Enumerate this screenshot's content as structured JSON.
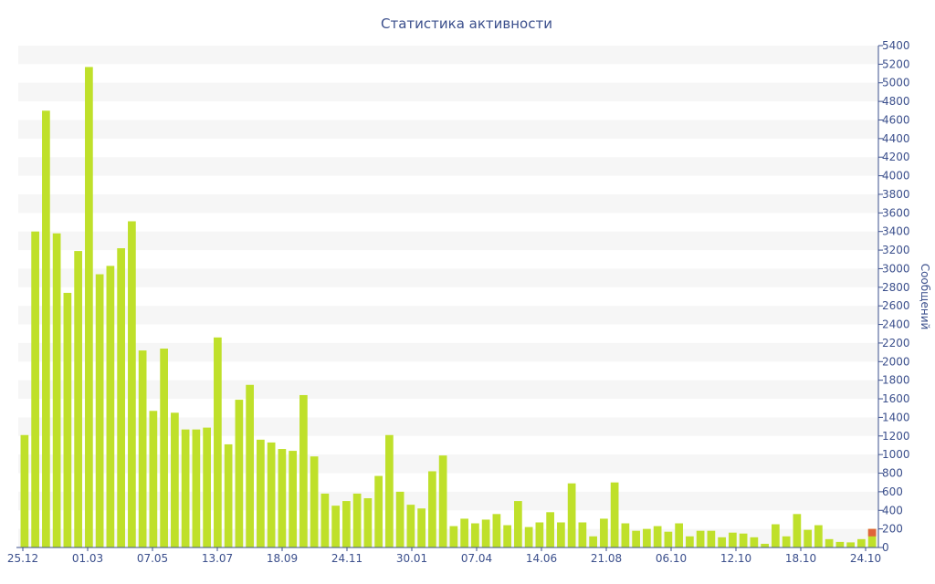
{
  "chart_data": {
    "type": "bar",
    "title": "Статистика активности",
    "xlabel": "",
    "ylabel": "Сообщений",
    "ylim": [
      0,
      5400
    ],
    "y_ticks": [
      0,
      200,
      400,
      600,
      800,
      1000,
      1200,
      1400,
      1600,
      1800,
      2000,
      2200,
      2400,
      2600,
      2800,
      3000,
      3200,
      3400,
      3600,
      3800,
      4000,
      4200,
      4400,
      4600,
      4800,
      5000,
      5200,
      5400
    ],
    "y_axis_position": "right",
    "grid": "alternating horizontal bands",
    "x_tick_labels": [
      "25.12",
      "01.03",
      "07.05",
      "13.07",
      "18.09",
      "24.11",
      "30.01",
      "07.04",
      "14.06",
      "21.08",
      "06.10",
      "12.10",
      "18.10",
      "24.10"
    ],
    "values": [
      1210,
      3400,
      4700,
      3380,
      2740,
      3190,
      5170,
      2940,
      3030,
      3220,
      3510,
      2120,
      1470,
      2140,
      1450,
      1270,
      1270,
      1290,
      2260,
      1110,
      1590,
      1750,
      1160,
      1130,
      1060,
      1040,
      1640,
      980,
      580,
      450,
      500,
      580,
      530,
      770,
      1210,
      600,
      460,
      420,
      820,
      990,
      230,
      310,
      260,
      300,
      360,
      240,
      500,
      220,
      270,
      380,
      270,
      690,
      270,
      120,
      310,
      700,
      260,
      180,
      200,
      230,
      170,
      260,
      120,
      180,
      180,
      110,
      160,
      150,
      110,
      40,
      250,
      120,
      360,
      190,
      240,
      90,
      60,
      55,
      90,
      200
    ],
    "highlight_last": true,
    "colors": {
      "bar": "#bfe02a",
      "bar_highlight": "#e0643a",
      "axis": "#3b4f8c",
      "text": "#3b4f8c",
      "band": "#f6f6f6"
    }
  }
}
